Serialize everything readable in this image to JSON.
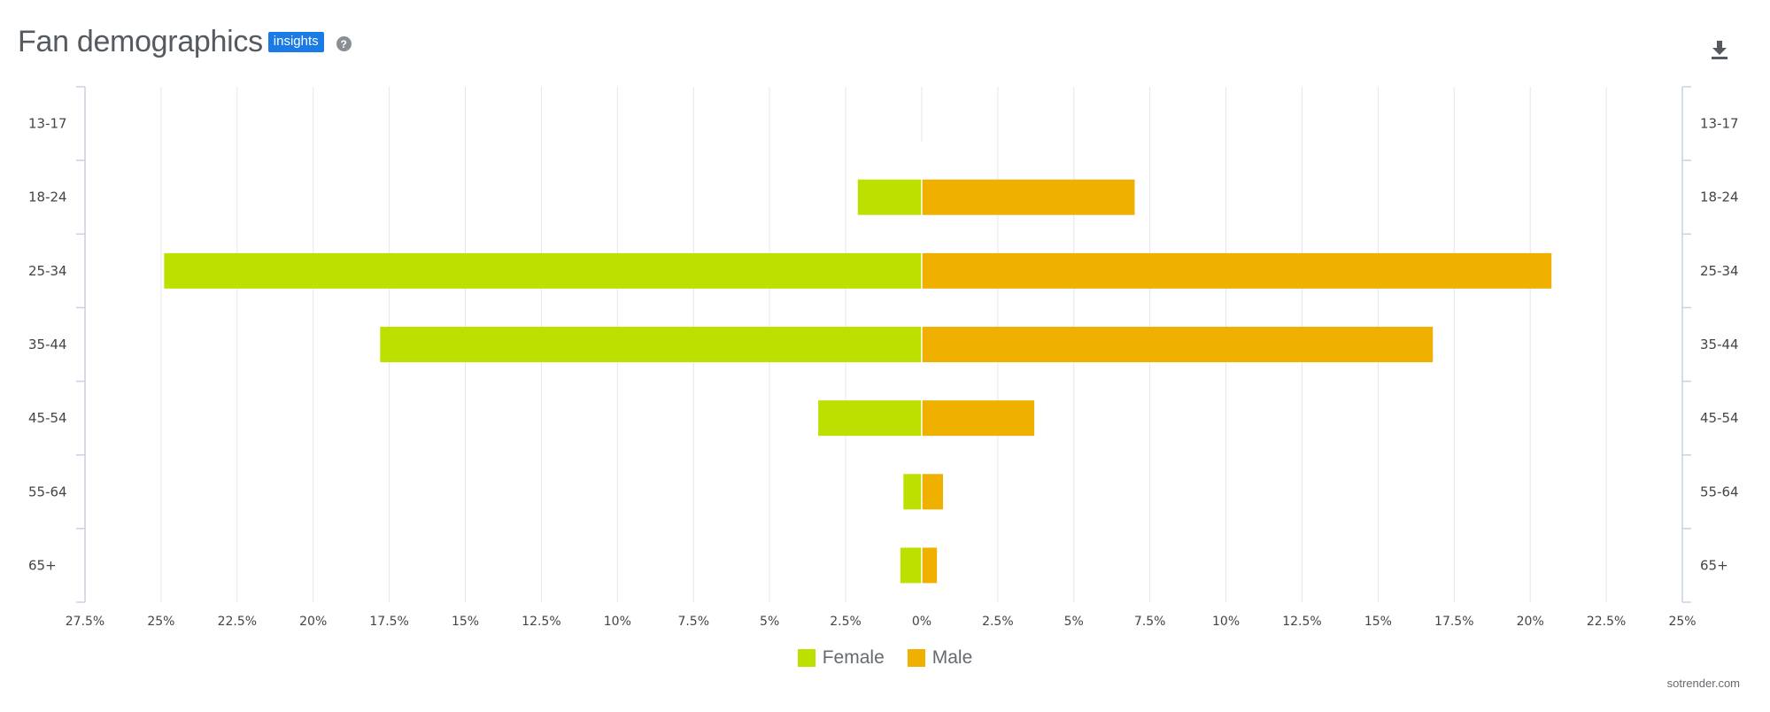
{
  "header": {
    "title": "Fan demographics",
    "badge": "insights",
    "help": "?"
  },
  "credit": "sotrender.com",
  "chart_data": {
    "type": "bar",
    "orientation": "horizontal-diverging",
    "categories": [
      "13-17",
      "18-24",
      "25-34",
      "35-44",
      "45-54",
      "55-64",
      "65+"
    ],
    "series": [
      {
        "name": "Female",
        "color": "#bde000",
        "values": [
          0,
          2.1,
          24.9,
          17.8,
          3.4,
          0.6,
          0.7
        ]
      },
      {
        "name": "Male",
        "color": "#f0b000",
        "values": [
          0,
          7.0,
          20.7,
          16.8,
          3.7,
          0.7,
          0.5
        ]
      }
    ],
    "x_ticks": [
      "27.5%",
      "25%",
      "22.5%",
      "20%",
      "17.5%",
      "15%",
      "12.5%",
      "10%",
      "7.5%",
      "5%",
      "2.5%",
      "0%",
      "2.5%",
      "5%",
      "7.5%",
      "10%",
      "12.5%",
      "15%",
      "17.5%",
      "20%",
      "22.5%",
      "25%"
    ],
    "xlim": [
      -27.5,
      25
    ],
    "grid": true,
    "legend": "bottom-center"
  }
}
